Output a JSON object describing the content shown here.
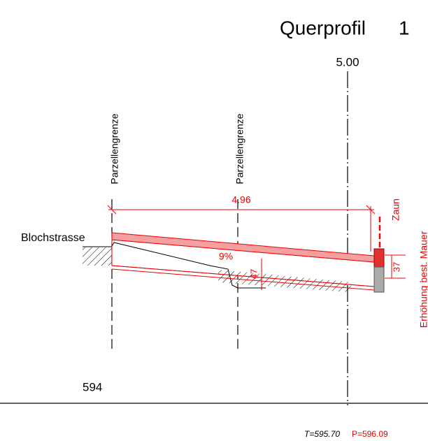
{
  "title": "Querprofil",
  "profile_number": "1",
  "axis_label": "5.00",
  "boundary_labels": [
    "Parzellengrenze",
    "Parzellengrenze"
  ],
  "dimension_width": "4.96",
  "fence_label": "Zaun",
  "wall_label": "Erhöhung best. Mauer",
  "street_label": "Blochstrasse",
  "slope_label": "9%",
  "thickness_label": "47",
  "wall_height_label": "37",
  "reference_level": "594",
  "footer": {
    "terrain": "T=595.70",
    "project": "P=596.09"
  }
}
